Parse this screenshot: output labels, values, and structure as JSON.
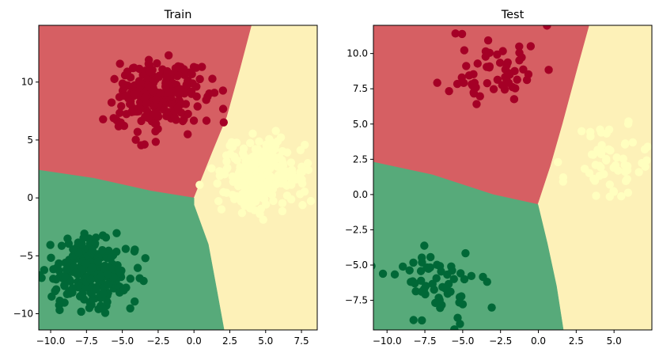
{
  "chart_data": [
    {
      "type": "scatter",
      "title": "Train",
      "xlim": [
        -10.83,
        8.6
      ],
      "ylim": [
        -11.4,
        14.9
      ],
      "xticks": [
        -10.0,
        -7.5,
        -5.0,
        -2.5,
        0.0,
        2.5,
        5.0,
        7.5
      ],
      "xtick_labels": [
        "−10.0",
        "−7.5",
        "−5.0",
        "−2.5",
        "0.0",
        "2.5",
        "5.0",
        "7.5"
      ],
      "yticks": [
        -10,
        -5,
        0,
        5,
        10
      ],
      "ytick_labels": [
        "−10",
        "−5",
        "0",
        "5",
        "10"
      ],
      "regions": [
        {
          "class": "red",
          "color": "#d65f63",
          "polygon": [
            [
              -10.83,
              14.9
            ],
            [
              4.03,
              14.9
            ],
            [
              3.2,
              11
            ],
            [
              2.3,
              7
            ],
            [
              1.3,
              4
            ],
            [
              0,
              0
            ],
            [
              -3,
              0.6
            ],
            [
              -7,
              1.7
            ],
            [
              -10.83,
              2.4
            ]
          ]
        },
        {
          "class": "yellow",
          "color": "#fdf1b8",
          "polygon": [
            [
              4.03,
              14.9
            ],
            [
              8.6,
              14.9
            ],
            [
              8.6,
              -11.4
            ],
            [
              2.1,
              -11.4
            ],
            [
              1.6,
              -8
            ],
            [
              1.0,
              -4
            ],
            [
              0,
              -0.6
            ],
            [
              0,
              0
            ],
            [
              1.3,
              4
            ],
            [
              2.3,
              7
            ],
            [
              3.2,
              11
            ]
          ]
        },
        {
          "class": "green",
          "color": "#57aa7a",
          "polygon": [
            [
              -10.83,
              2.4
            ],
            [
              -7,
              1.7
            ],
            [
              -3,
              0.6
            ],
            [
              0,
              0
            ],
            [
              0,
              -0.6
            ],
            [
              1.0,
              -4
            ],
            [
              1.6,
              -8
            ],
            [
              2.1,
              -11.4
            ],
            [
              -10.83,
              -11.4
            ]
          ]
        }
      ],
      "clusters": [
        {
          "class": "red",
          "color": "#a50026",
          "center": [
            -2.6,
            8.8
          ],
          "std": 1.5,
          "n": 250
        },
        {
          "class": "yellow",
          "color": "#ffffbf",
          "center": [
            4.9,
            2.0
          ],
          "std": 1.5,
          "n": 250
        },
        {
          "class": "green",
          "color": "#006837",
          "center": [
            -7.2,
            -6.6
          ],
          "std": 1.5,
          "n": 250
        }
      ],
      "seed": 7
    },
    {
      "type": "scatter",
      "title": "Test",
      "xlim": [
        -10.9,
        7.5
      ],
      "ylim": [
        -9.6,
        12.0
      ],
      "xticks": [
        -10.0,
        -7.5,
        -5.0,
        -2.5,
        0.0,
        2.5,
        5.0
      ],
      "xtick_labels": [
        "−10.0",
        "−7.5",
        "−5.0",
        "−2.5",
        "0.0",
        "2.5",
        "5.0"
      ],
      "yticks": [
        -7.5,
        -5.0,
        -2.5,
        0.0,
        2.5,
        5.0,
        7.5,
        10.0
      ],
      "ytick_labels": [
        "−7.5",
        "−5.0",
        "−2.5",
        "0.0",
        "2.5",
        "5.0",
        "7.5",
        "10.0"
      ],
      "regions": [
        {
          "class": "red",
          "color": "#d65f63",
          "polygon": [
            [
              -10.9,
              12.0
            ],
            [
              3.37,
              12.0
            ],
            [
              2.6,
              9
            ],
            [
              1.6,
              5
            ],
            [
              0.8,
              2
            ],
            [
              -0.03,
              -0.7
            ],
            [
              -3,
              0
            ],
            [
              -7,
              1.4
            ],
            [
              -10.9,
              2.3
            ]
          ]
        },
        {
          "class": "yellow",
          "color": "#fdf1b8",
          "polygon": [
            [
              3.37,
              12.0
            ],
            [
              7.5,
              12.0
            ],
            [
              7.5,
              -9.6
            ],
            [
              1.65,
              -9.6
            ],
            [
              1.2,
              -6.5
            ],
            [
              0.6,
              -3.5
            ],
            [
              -0.03,
              -0.7
            ],
            [
              0.8,
              2
            ],
            [
              1.6,
              5
            ],
            [
              2.6,
              9
            ]
          ]
        },
        {
          "class": "green",
          "color": "#57aa7a",
          "polygon": [
            [
              -10.9,
              2.3
            ],
            [
              -7,
              1.4
            ],
            [
              -3,
              0
            ],
            [
              -0.03,
              -0.7
            ],
            [
              0.6,
              -3.5
            ],
            [
              1.2,
              -6.5
            ],
            [
              1.65,
              -9.6
            ],
            [
              -10.9,
              -9.6
            ]
          ]
        }
      ],
      "clusters": [
        {
          "class": "red",
          "color": "#a50026",
          "center": [
            -2.9,
            9.0
          ],
          "std": 1.5,
          "n": 60
        },
        {
          "class": "yellow",
          "color": "#ffffbf",
          "center": [
            5.0,
            2.2
          ],
          "std": 1.5,
          "n": 60
        },
        {
          "class": "green",
          "color": "#006837",
          "center": [
            -6.8,
            -6.4
          ],
          "std": 1.5,
          "n": 60
        }
      ],
      "seed": 11
    }
  ]
}
